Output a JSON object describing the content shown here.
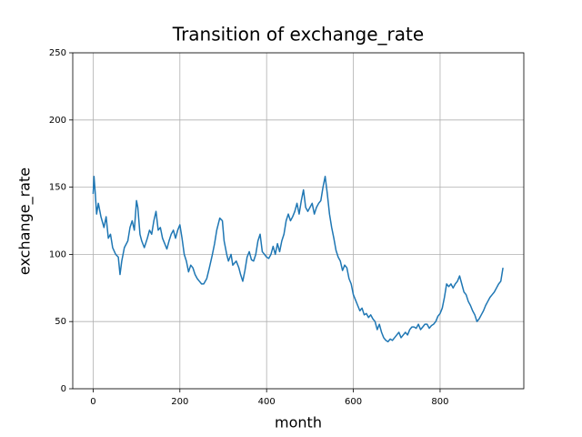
{
  "chart_data": {
    "type": "line",
    "title": "Transition of exchange_rate",
    "xlabel": "month",
    "ylabel": "exchange_rate",
    "color": "#1f77b4",
    "grid": true,
    "xlim": [
      -47,
      993
    ],
    "ylim": [
      0,
      250
    ],
    "xticks": [
      0,
      200,
      400,
      600,
      800
    ],
    "yticks": [
      0,
      50,
      100,
      150,
      200,
      250
    ],
    "x": [
      0,
      2,
      5,
      8,
      12,
      18,
      25,
      30,
      35,
      40,
      45,
      52,
      58,
      62,
      66,
      72,
      80,
      85,
      90,
      95,
      100,
      103,
      108,
      112,
      118,
      125,
      130,
      135,
      140,
      145,
      150,
      155,
      160,
      165,
      170,
      175,
      180,
      185,
      190,
      195,
      200,
      205,
      210,
      215,
      220,
      225,
      230,
      235,
      240,
      245,
      250,
      255,
      262,
      268,
      275,
      280,
      285,
      292,
      298,
      302,
      308,
      312,
      318,
      322,
      330,
      336,
      340,
      345,
      350,
      355,
      360,
      365,
      370,
      375,
      380,
      385,
      390,
      395,
      400,
      405,
      410,
      415,
      420,
      425,
      430,
      435,
      440,
      445,
      450,
      455,
      460,
      465,
      470,
      475,
      480,
      485,
      490,
      495,
      500,
      505,
      510,
      515,
      520,
      525,
      530,
      535,
      540,
      545,
      550,
      555,
      560,
      565,
      570,
      575,
      580,
      585,
      590,
      595,
      600,
      605,
      610,
      615,
      620,
      625,
      630,
      635,
      640,
      645,
      650,
      655,
      660,
      665,
      670,
      675,
      680,
      685,
      690,
      695,
      700,
      705,
      710,
      715,
      720,
      725,
      730,
      735,
      740,
      745,
      750,
      755,
      760,
      765,
      770,
      775,
      780,
      785,
      790,
      795,
      800,
      805,
      810,
      815,
      820,
      825,
      830,
      835,
      840,
      845,
      850,
      855,
      860,
      865,
      870,
      875,
      880,
      885,
      890,
      895,
      900,
      905,
      910,
      915,
      920,
      925,
      930,
      935,
      940,
      945
    ],
    "values": [
      145,
      158,
      145,
      130,
      138,
      128,
      120,
      128,
      112,
      115,
      105,
      100,
      98,
      85,
      95,
      105,
      110,
      120,
      125,
      118,
      140,
      135,
      115,
      110,
      105,
      112,
      118,
      115,
      125,
      132,
      118,
      120,
      112,
      108,
      104,
      110,
      115,
      118,
      112,
      118,
      122,
      112,
      100,
      95,
      87,
      92,
      90,
      85,
      82,
      80,
      78,
      78,
      82,
      90,
      100,
      108,
      118,
      127,
      125,
      110,
      100,
      95,
      100,
      92,
      95,
      90,
      85,
      80,
      88,
      98,
      102,
      96,
      95,
      100,
      110,
      115,
      102,
      100,
      98,
      97,
      100,
      106,
      100,
      108,
      102,
      110,
      115,
      125,
      130,
      125,
      128,
      132,
      138,
      130,
      140,
      148,
      135,
      132,
      135,
      138,
      130,
      135,
      138,
      140,
      150,
      158,
      145,
      130,
      120,
      112,
      103,
      98,
      95,
      88,
      92,
      90,
      82,
      78,
      70,
      66,
      62,
      58,
      60,
      55,
      56,
      53,
      55,
      52,
      50,
      44,
      48,
      42,
      38,
      36,
      35,
      37,
      36,
      38,
      40,
      42,
      38,
      40,
      42,
      40,
      44,
      46,
      46,
      45,
      48,
      44,
      46,
      48,
      48,
      45,
      47,
      48,
      50,
      54,
      56,
      60,
      68,
      78,
      76,
      78,
      75,
      78,
      80,
      84,
      78,
      72,
      70,
      65,
      62,
      58,
      55,
      50,
      52,
      55,
      58,
      62,
      65,
      68,
      70,
      72,
      75,
      78,
      80,
      90
    ]
  }
}
